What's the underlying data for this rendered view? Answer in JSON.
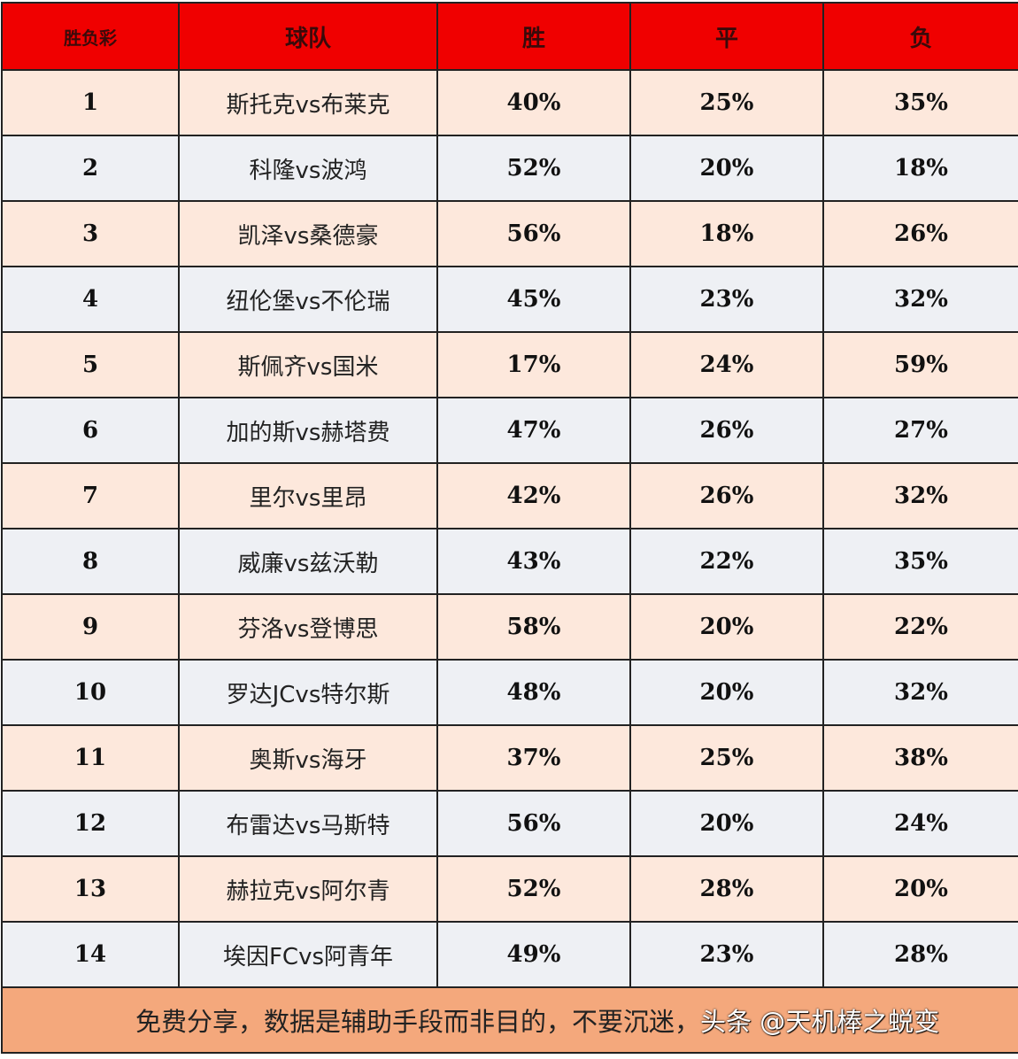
{
  "header": {
    "col1": "胜负彩",
    "col2": "球队",
    "col3": "胜",
    "col4": "平",
    "col5": "负"
  },
  "rows": [
    {
      "no": "1",
      "match": "斯托克vs布莱克",
      "win": "40%",
      "draw": "25%",
      "lose": "35%"
    },
    {
      "no": "2",
      "match": "科隆vs波鸿",
      "win": "52%",
      "draw": "20%",
      "lose": "18%"
    },
    {
      "no": "3",
      "match": "凯泽vs桑德豪",
      "win": "56%",
      "draw": "18%",
      "lose": "26%"
    },
    {
      "no": "4",
      "match": "纽伦堡vs不伦瑞",
      "win": "45%",
      "draw": "23%",
      "lose": "32%"
    },
    {
      "no": "5",
      "match": "斯佩齐vs国米",
      "win": "17%",
      "draw": "24%",
      "lose": "59%"
    },
    {
      "no": "6",
      "match": "加的斯vs赫塔费",
      "win": "47%",
      "draw": "26%",
      "lose": "27%"
    },
    {
      "no": "7",
      "match": "里尔vs里昂",
      "win": "42%",
      "draw": "26%",
      "lose": "32%"
    },
    {
      "no": "8",
      "match": "威廉vs兹沃勒",
      "win": "43%",
      "draw": "22%",
      "lose": "35%"
    },
    {
      "no": "9",
      "match": "芬洛vs登博思",
      "win": "58%",
      "draw": "20%",
      "lose": "22%"
    },
    {
      "no": "10",
      "match": "罗达JCvs特尔斯",
      "win": "48%",
      "draw": "20%",
      "lose": "32%"
    },
    {
      "no": "11",
      "match": "奥斯vs海牙",
      "win": "37%",
      "draw": "25%",
      "lose": "38%"
    },
    {
      "no": "12",
      "match": "布雷达vs马斯特",
      "win": "56%",
      "draw": "20%",
      "lose": "24%"
    },
    {
      "no": "13",
      "match": "赫拉克vs阿尔青",
      "win": "52%",
      "draw": "28%",
      "lose": "20%"
    },
    {
      "no": "14",
      "match": "埃因FCvs阿青年",
      "win": "49%",
      "draw": "23%",
      "lose": "28%"
    }
  ],
  "footer": {
    "note": "免费分享，数据是辅助手段而非目的，不要沉迷，",
    "watermark": "头条 @天机棒之蜕变"
  },
  "colors": {
    "header": "#f00000",
    "row_odd": "#fde8dc",
    "row_even": "#eef0f4",
    "footer": "#f4a87c"
  }
}
